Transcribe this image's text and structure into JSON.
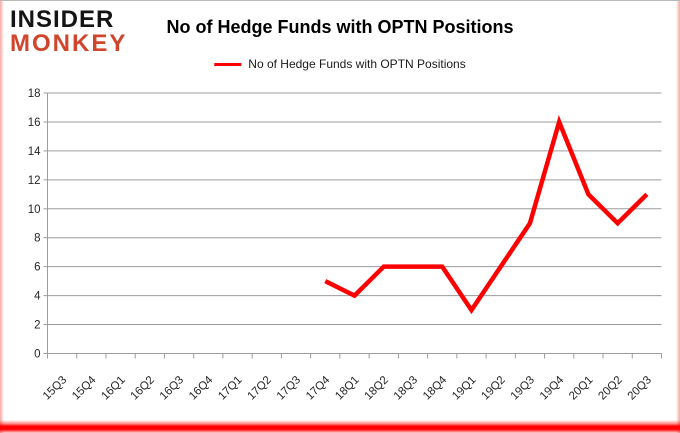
{
  "logo": {
    "line1": "INSIDER",
    "line2": "MONKEY",
    "line1_color": "#141414",
    "line2_color": "#d0452b"
  },
  "header": {
    "title": "No of Hedge Funds with OPTN Positions"
  },
  "legend": {
    "label": "No of Hedge Funds with OPTN Positions",
    "line_color": "#ff0000"
  },
  "chart_data": {
    "type": "line",
    "title": "No of Hedge Funds with OPTN Positions",
    "xlabel": "",
    "ylabel": "",
    "categories": [
      "15Q3",
      "15Q4",
      "16Q1",
      "16Q2",
      "16Q3",
      "16Q4",
      "17Q1",
      "17Q2",
      "17Q3",
      "17Q4",
      "18Q1",
      "18Q2",
      "18Q3",
      "18Q4",
      "19Q1",
      "19Q2",
      "19Q3",
      "19Q4",
      "20Q1",
      "20Q2",
      "20Q3"
    ],
    "series": [
      {
        "name": "No of Hedge Funds with OPTN Positions",
        "color": "#ff0000",
        "line_width": 4.5,
        "values": [
          null,
          null,
          null,
          null,
          null,
          null,
          null,
          null,
          null,
          5,
          4,
          6,
          6,
          6,
          3,
          6,
          9,
          16,
          11,
          9,
          11
        ]
      }
    ],
    "ylim": [
      0,
      18
    ],
    "ytick_step": 2,
    "grid": true,
    "gridline_color": "#9c9c9c",
    "axis_color": "#9c9c9c",
    "tick_label_color": "#262626",
    "legend_position": "top-center",
    "x_label_rotation_deg": 45
  },
  "frame": {
    "bottom_bar_color": "#ff0000",
    "side_border_color": "#f2a8a2"
  }
}
